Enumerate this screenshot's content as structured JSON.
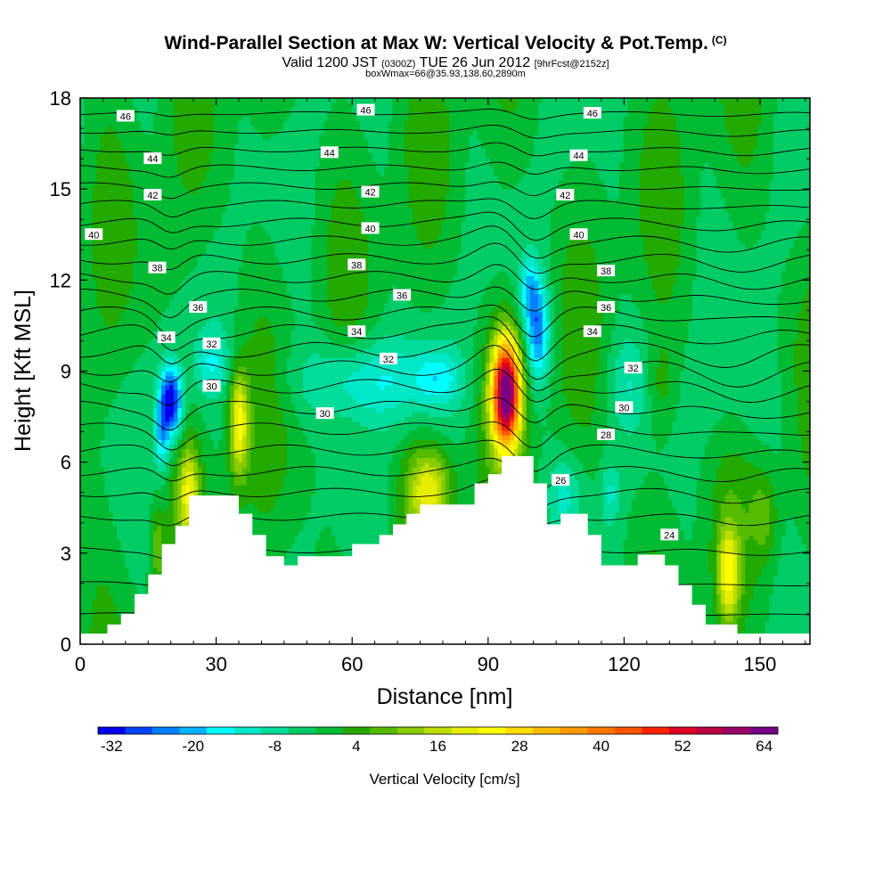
{
  "header": {
    "title": "Wind-Parallel Section at Max W: Vertical Velocity & Pot.Temp.",
    "title_mark": "(C)",
    "valid_prefix": "Valid 1200 JST",
    "valid_utc": "(0300Z)",
    "valid_date": "TUE 26 Jun 2012",
    "forecast": "[9hrFcst@2152z]",
    "box_info": "boxWmax=66@35.93,138.60,2890m"
  },
  "chart_data": {
    "type": "heatmap",
    "xlabel": "Distance [nm]",
    "ylabel": "Height [Kft MSL]",
    "xlim": [
      0,
      161
    ],
    "ylim": [
      0,
      18
    ],
    "xticks": [
      0,
      30,
      60,
      90,
      120,
      150
    ],
    "yticks": [
      0,
      3,
      6,
      9,
      12,
      15,
      18
    ],
    "colorbar": {
      "title": "Vertical Velocity [cm/s]",
      "ticks": [
        -32,
        -20,
        -8,
        4,
        16,
        28,
        40,
        52,
        64
      ],
      "min": -32,
      "max": 68,
      "step": 4,
      "colors": [
        "#0000ee",
        "#0044ff",
        "#0080ff",
        "#00b4ff",
        "#00ffff",
        "#00e8c8",
        "#00dc9a",
        "#00cc66",
        "#00bb33",
        "#22aa00",
        "#55bb00",
        "#88cc00",
        "#bbdd00",
        "#e6ee00",
        "#ffff00",
        "#ffdd00",
        "#ffbb00",
        "#ff9900",
        "#ff7700",
        "#ff5500",
        "#ff2200",
        "#dd0022",
        "#bb0044",
        "#990066",
        "#770088"
      ]
    },
    "theta_contour_labels": [
      {
        "text": "46",
        "x": 10,
        "y": 17.4
      },
      {
        "text": "46",
        "x": 63,
        "y": 17.6
      },
      {
        "text": "46",
        "x": 113,
        "y": 17.5
      },
      {
        "text": "44",
        "x": 16,
        "y": 16.0
      },
      {
        "text": "44",
        "x": 55,
        "y": 16.2
      },
      {
        "text": "44",
        "x": 110,
        "y": 16.1
      },
      {
        "text": "42",
        "x": 16,
        "y": 14.8
      },
      {
        "text": "42",
        "x": 64,
        "y": 14.9
      },
      {
        "text": "42",
        "x": 107,
        "y": 14.8
      },
      {
        "text": "40",
        "x": 3,
        "y": 13.5
      },
      {
        "text": "40",
        "x": 64,
        "y": 13.7
      },
      {
        "text": "40",
        "x": 110,
        "y": 13.5
      },
      {
        "text": "38",
        "x": 17,
        "y": 12.4
      },
      {
        "text": "38",
        "x": 61,
        "y": 12.5
      },
      {
        "text": "38",
        "x": 116,
        "y": 12.3
      },
      {
        "text": "36",
        "x": 26,
        "y": 11.1
      },
      {
        "text": "36",
        "x": 71,
        "y": 11.5
      },
      {
        "text": "36",
        "x": 116,
        "y": 11.1
      },
      {
        "text": "34",
        "x": 19,
        "y": 10.1
      },
      {
        "text": "34",
        "x": 61,
        "y": 10.3
      },
      {
        "text": "34",
        "x": 113,
        "y": 10.3
      },
      {
        "text": "32",
        "x": 29,
        "y": 9.9
      },
      {
        "text": "32",
        "x": 68,
        "y": 9.4
      },
      {
        "text": "32",
        "x": 122,
        "y": 9.1
      },
      {
        "text": "30",
        "x": 29,
        "y": 8.5
      },
      {
        "text": "30",
        "x": 54,
        "y": 7.6
      },
      {
        "text": "30",
        "x": 120,
        "y": 7.8
      },
      {
        "text": "28",
        "x": 116,
        "y": 6.9
      },
      {
        "text": "26",
        "x": 106,
        "y": 5.4
      },
      {
        "text": "24",
        "x": 130,
        "y": 3.6
      }
    ]
  }
}
